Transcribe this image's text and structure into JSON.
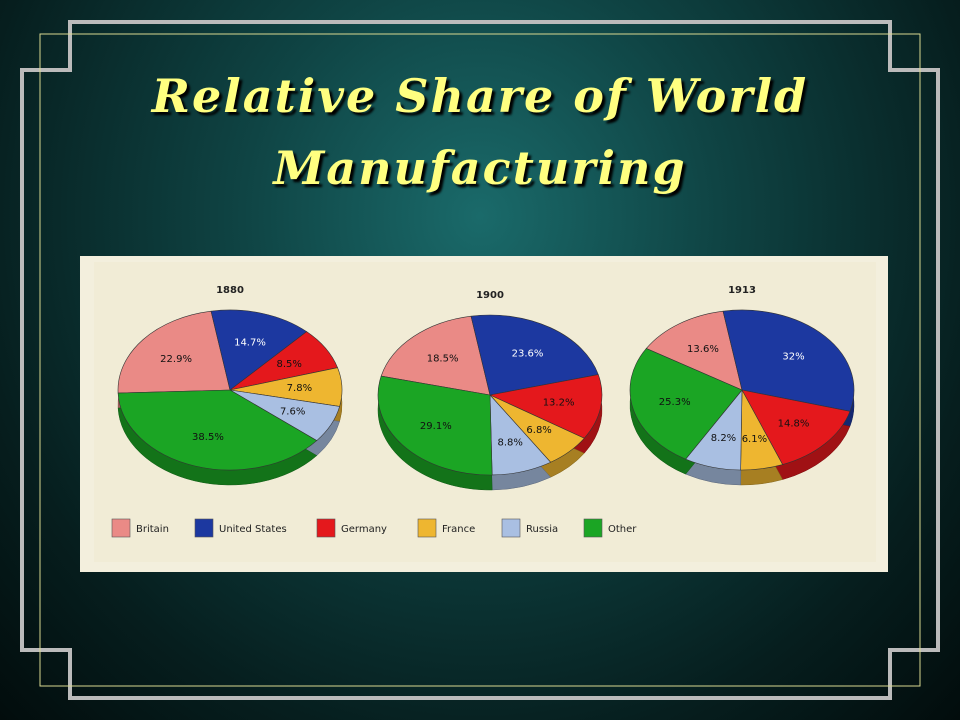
{
  "slide": {
    "title": "Relative Share of World Manufacturing"
  },
  "chart_data": [
    {
      "type": "pie",
      "title": "1880",
      "categories": [
        "Britain",
        "United States",
        "Germany",
        "France",
        "Russia",
        "Other"
      ],
      "values": [
        22.9,
        14.7,
        8.5,
        7.8,
        7.6,
        38.5
      ],
      "value_labels": [
        "22.9%",
        "14.7%",
        "8.5%",
        "7.8%",
        "7.6%",
        "38.5%"
      ],
      "colors": [
        "#ea8a86",
        "#1c38a0",
        "#e4181c",
        "#eeb630",
        "#a9bfe2",
        "#1ba524"
      ]
    },
    {
      "type": "pie",
      "title": "1900",
      "categories": [
        "Britain",
        "United States",
        "Germany",
        "France",
        "Russia",
        "Other"
      ],
      "values": [
        18.5,
        23.6,
        13.2,
        6.8,
        8.8,
        29.1
      ],
      "value_labels": [
        "18.5%",
        "23.6%",
        "13.2%",
        "6.8%",
        "8.8%",
        "29.1%"
      ],
      "colors": [
        "#ea8a86",
        "#1c38a0",
        "#e4181c",
        "#eeb630",
        "#a9bfe2",
        "#1ba524"
      ]
    },
    {
      "type": "pie",
      "title": "1913",
      "categories": [
        "Britain",
        "United States",
        "Germany",
        "France",
        "Russia",
        "Other"
      ],
      "values": [
        13.6,
        32,
        14.8,
        6.1,
        8.2,
        25.3
      ],
      "value_labels": [
        "13.6%",
        "32%",
        "14.8%",
        "6.1%",
        "8.2%",
        "25.3%"
      ],
      "colors": [
        "#ea8a86",
        "#1c38a0",
        "#e4181c",
        "#eeb630",
        "#a9bfe2",
        "#1ba524"
      ]
    }
  ]
}
